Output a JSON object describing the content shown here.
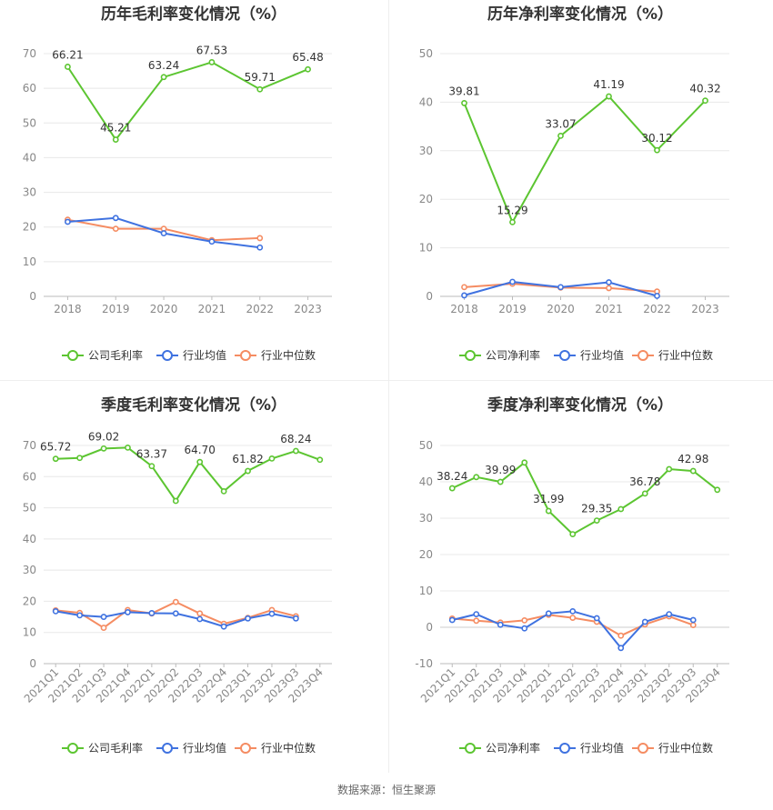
{
  "source_label": "数据来源：恒生聚源",
  "legend_colors": {
    "company": "#5cc531",
    "industry_avg": "#3f72e0",
    "industry_median": "#f58c62"
  },
  "chart_data": [
    {
      "type": "line",
      "title": "历年毛利率变化情况（%）",
      "x": [
        "2018",
        "2019",
        "2020",
        "2021",
        "2022",
        "2023"
      ],
      "ylim": [
        0,
        70
      ],
      "yticks": [
        0,
        10,
        20,
        30,
        40,
        50,
        60,
        70
      ],
      "grid": true,
      "legend_position": "bottom",
      "series": [
        {
          "name": "公司毛利率",
          "color": "#5cc531",
          "values": [
            66.21,
            45.21,
            63.24,
            67.53,
            59.71,
            65.48
          ],
          "labels": [
            "66.21",
            "45.21",
            "63.24",
            "67.53",
            "59.71",
            "65.48"
          ]
        },
        {
          "name": "行业均值",
          "color": "#3f72e0",
          "values": [
            21.5,
            22.6,
            18.2,
            15.8,
            14.1,
            null
          ]
        },
        {
          "name": "行业中位数",
          "color": "#f58c62",
          "values": [
            22.1,
            19.5,
            19.5,
            16.2,
            16.8,
            null
          ]
        }
      ]
    },
    {
      "type": "line",
      "title": "历年净利率变化情况（%）",
      "x": [
        "2018",
        "2019",
        "2020",
        "2021",
        "2022",
        "2023"
      ],
      "ylim": [
        0,
        50
      ],
      "yticks": [
        0,
        10,
        20,
        30,
        40,
        50
      ],
      "grid": true,
      "legend_position": "bottom",
      "series": [
        {
          "name": "公司净利率",
          "color": "#5cc531",
          "values": [
            39.81,
            15.29,
            33.07,
            41.19,
            30.12,
            40.32
          ],
          "labels": [
            "39.81",
            "15.29",
            "33.07",
            "41.19",
            "30.12",
            "40.32"
          ]
        },
        {
          "name": "行业均值",
          "color": "#3f72e0",
          "values": [
            0.2,
            3.0,
            1.9,
            2.9,
            0.1,
            null
          ]
        },
        {
          "name": "行业中位数",
          "color": "#f58c62",
          "values": [
            1.9,
            2.6,
            1.8,
            1.7,
            1.0,
            null
          ]
        }
      ]
    },
    {
      "type": "line",
      "title": "季度毛利率变化情况（%）",
      "x": [
        "2021Q1",
        "2021Q2",
        "2021Q3",
        "2021Q4",
        "2022Q1",
        "2022Q2",
        "2022Q3",
        "2022Q4",
        "2023Q1",
        "2023Q2",
        "2023Q3",
        "2023Q4"
      ],
      "ylim": [
        0,
        70
      ],
      "yticks": [
        0,
        10,
        20,
        30,
        40,
        50,
        60,
        70
      ],
      "grid": true,
      "legend_position": "bottom",
      "series": [
        {
          "name": "公司毛利率",
          "color": "#5cc531",
          "values": [
            65.72,
            66.0,
            69.02,
            69.3,
            63.37,
            52.2,
            64.7,
            55.3,
            61.82,
            65.8,
            68.24,
            65.4
          ],
          "labels": [
            "65.72",
            "",
            "69.02",
            "",
            "63.37",
            "",
            "64.70",
            "",
            "61.82",
            "",
            "68.24",
            ""
          ]
        },
        {
          "name": "行业均值",
          "color": "#3f72e0",
          "values": [
            16.8,
            15.5,
            15.0,
            16.5,
            16.2,
            16.1,
            14.3,
            11.9,
            14.5,
            16.0,
            14.5,
            null
          ]
        },
        {
          "name": "行业中位数",
          "color": "#f58c62",
          "values": [
            17.1,
            16.3,
            11.5,
            17.2,
            16.1,
            19.8,
            16.1,
            12.8,
            14.7,
            17.2,
            15.2,
            null
          ]
        }
      ]
    },
    {
      "type": "line",
      "title": "季度净利率变化情况（%）",
      "x": [
        "2021Q1",
        "2021Q2",
        "2021Q3",
        "2021Q4",
        "2022Q1",
        "2022Q2",
        "2022Q3",
        "2022Q4",
        "2023Q1",
        "2023Q2",
        "2023Q3",
        "2023Q4"
      ],
      "ylim": [
        -10,
        50
      ],
      "yticks": [
        -10,
        0,
        10,
        20,
        30,
        40,
        50
      ],
      "grid": true,
      "legend_position": "bottom",
      "series": [
        {
          "name": "公司净利率",
          "color": "#5cc531",
          "values": [
            38.24,
            41.3,
            39.99,
            45.3,
            31.99,
            25.6,
            29.35,
            32.5,
            36.78,
            43.5,
            42.98,
            37.8
          ],
          "labels": [
            "38.24",
            "",
            "39.99",
            "",
            "31.99",
            "",
            "29.35",
            "",
            "36.78",
            "",
            "42.98",
            ""
          ]
        },
        {
          "name": "行业均值",
          "color": "#3f72e0",
          "values": [
            2.0,
            3.6,
            0.7,
            -0.3,
            3.8,
            4.4,
            2.5,
            -5.7,
            1.5,
            3.6,
            2.0,
            null
          ]
        },
        {
          "name": "行业中位数",
          "color": "#f58c62",
          "values": [
            2.4,
            1.8,
            1.3,
            1.9,
            3.4,
            2.6,
            1.5,
            -2.3,
            0.8,
            3.0,
            0.6,
            null
          ]
        }
      ]
    }
  ]
}
